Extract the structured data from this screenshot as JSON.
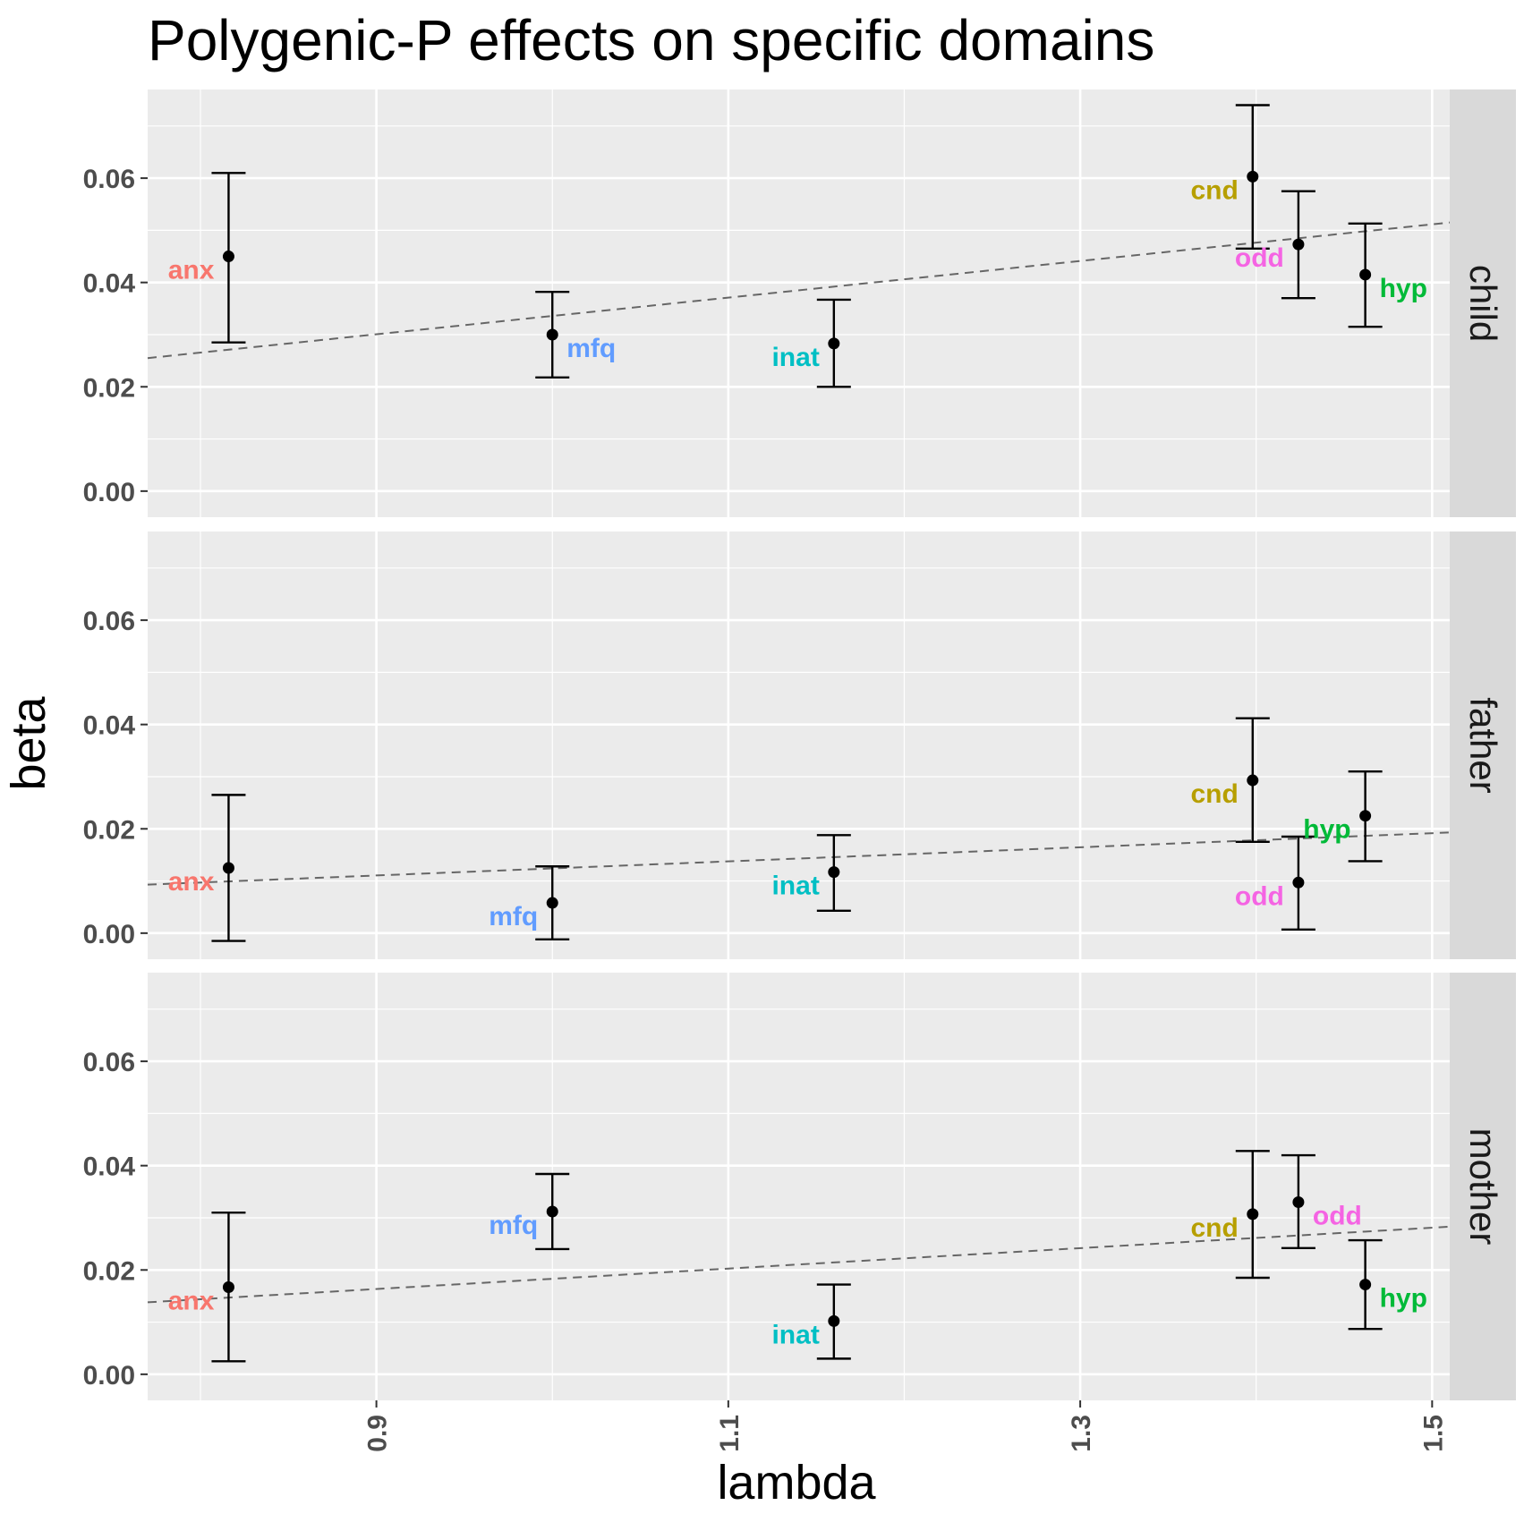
{
  "chart_data": {
    "type": "scatter",
    "title": "Polygenic-P effects on specific domains",
    "xlabel": "lambda",
    "ylabel": "beta",
    "xlim": [
      0.77,
      1.51
    ],
    "ylim": [
      -0.005,
      0.077
    ],
    "x_ticks": [
      0.9,
      1.1,
      1.3,
      1.5
    ],
    "x_tick_labels": [
      "0.9",
      "1.1",
      "1.3",
      "1.5"
    ],
    "y_ticks": [
      0.0,
      0.02,
      0.04,
      0.06
    ],
    "y_tick_labels": [
      "0.00",
      "0.02",
      "0.04",
      "0.06"
    ],
    "grid": true,
    "facet_position": "right",
    "colors": {
      "anx": "#F8766D",
      "cnd": "#B79F00",
      "hyp": "#00BA38",
      "inat": "#00BFC4",
      "mfq": "#619CFF",
      "odd": "#F564E3",
      "point": "#000000",
      "trend": "#666666",
      "panel_bg": "#EBEBEB",
      "strip_bg": "#D9D9D9"
    },
    "panels": [
      {
        "name": "child",
        "trend": {
          "x0": 0.77,
          "y0": 0.0255,
          "x1": 1.51,
          "y1": 0.0515
        },
        "points": [
          {
            "label": "anx",
            "x": 0.816,
            "y": 0.045,
            "ymin": 0.0285,
            "ymax": 0.061,
            "label_side": "left"
          },
          {
            "label": "mfq",
            "x": 1.0,
            "y": 0.03,
            "ymin": 0.0218,
            "ymax": 0.0382,
            "label_side": "right"
          },
          {
            "label": "inat",
            "x": 1.16,
            "y": 0.0283,
            "ymin": 0.02,
            "ymax": 0.0367,
            "label_side": "left"
          },
          {
            "label": "cnd",
            "x": 1.398,
            "y": 0.0603,
            "ymin": 0.0465,
            "ymax": 0.074,
            "label_side": "left"
          },
          {
            "label": "odd",
            "x": 1.424,
            "y": 0.0473,
            "ymin": 0.037,
            "ymax": 0.0575,
            "label_side": "left"
          },
          {
            "label": "hyp",
            "x": 1.462,
            "y": 0.0415,
            "ymin": 0.0315,
            "ymax": 0.0513,
            "label_side": "right"
          }
        ]
      },
      {
        "name": "father",
        "trend": {
          "x0": 0.77,
          "y0": 0.0093,
          "x1": 1.51,
          "y1": 0.0193
        },
        "points": [
          {
            "label": "anx",
            "x": 0.816,
            "y": 0.0125,
            "ymin": -0.0015,
            "ymax": 0.0265,
            "label_side": "left"
          },
          {
            "label": "mfq",
            "x": 1.0,
            "y": 0.0058,
            "ymin": -0.0012,
            "ymax": 0.0128,
            "label_side": "left"
          },
          {
            "label": "inat",
            "x": 1.16,
            "y": 0.0117,
            "ymin": 0.0043,
            "ymax": 0.0188,
            "label_side": "left"
          },
          {
            "label": "cnd",
            "x": 1.398,
            "y": 0.0293,
            "ymin": 0.0175,
            "ymax": 0.0412,
            "label_side": "left"
          },
          {
            "label": "odd",
            "x": 1.424,
            "y": 0.0097,
            "ymin": 0.0007,
            "ymax": 0.0185,
            "label_side": "left"
          },
          {
            "label": "hyp",
            "x": 1.462,
            "y": 0.0225,
            "ymin": 0.0138,
            "ymax": 0.031,
            "label_side": "left"
          }
        ]
      },
      {
        "name": "mother",
        "trend": {
          "x0": 0.77,
          "y0": 0.0138,
          "x1": 1.51,
          "y1": 0.0283
        },
        "points": [
          {
            "label": "anx",
            "x": 0.816,
            "y": 0.0167,
            "ymin": 0.0025,
            "ymax": 0.031,
            "label_side": "left"
          },
          {
            "label": "mfq",
            "x": 1.0,
            "y": 0.0312,
            "ymin": 0.024,
            "ymax": 0.0384,
            "label_side": "left"
          },
          {
            "label": "inat",
            "x": 1.16,
            "y": 0.0102,
            "ymin": 0.003,
            "ymax": 0.0172,
            "label_side": "left"
          },
          {
            "label": "cnd",
            "x": 1.398,
            "y": 0.0307,
            "ymin": 0.0185,
            "ymax": 0.0428,
            "label_side": "left"
          },
          {
            "label": "odd",
            "x": 1.424,
            "y": 0.033,
            "ymin": 0.0242,
            "ymax": 0.042,
            "label_side": "right"
          },
          {
            "label": "hyp",
            "x": 1.462,
            "y": 0.0172,
            "ymin": 0.0087,
            "ymax": 0.0257,
            "label_side": "right"
          }
        ]
      }
    ]
  }
}
